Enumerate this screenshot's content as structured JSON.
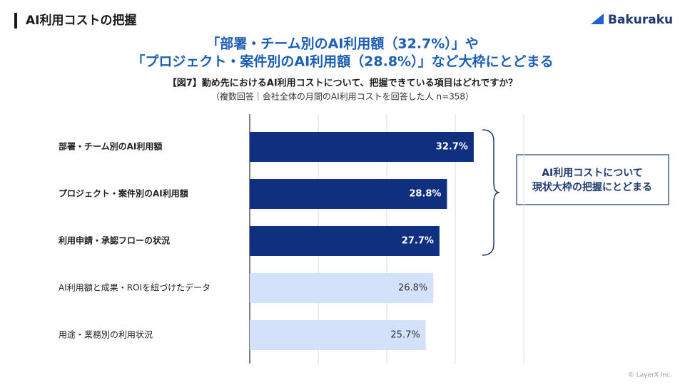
{
  "header": {
    "section_title": "AI利用コストの把握",
    "logo": "Bakuraku"
  },
  "headline": [
    "「部署・チーム別のAI利用額（32.7%）」や",
    "「プロジェクト・案件別のAI利用額（28.8%）」など大枠にとどまる"
  ],
  "chart_data": {
    "type": "bar",
    "orientation": "horizontal",
    "title": "【図7】勤め先におけるAI利用コストについて、把握できている項目はどれですか？",
    "subtitle": "（複数回答｜会社全体の月間のAI利用コストを回答した人 n=358）",
    "categories": [
      "部署・チーム別のAI利用額",
      "プロジェクト・案件別のAI利用額",
      "利用申請・承認フローの状況",
      "AI利用額と成果・ROIを紐づけたデータ",
      "用途・業務別の利用状況"
    ],
    "values": [
      32.7,
      28.8,
      27.7,
      26.8,
      25.7
    ],
    "value_labels": [
      "32.7%",
      "28.8%",
      "27.7%",
      "26.8%",
      "25.7%"
    ],
    "colors": [
      "#0f2f7f",
      "#0f2f7f",
      "#0f2f7f",
      "#d3e2fa",
      "#d3e2fa"
    ],
    "emphasis": [
      true,
      true,
      true,
      false,
      false
    ],
    "xlim": [
      0,
      40
    ],
    "xticks": [
      0,
      10,
      20,
      30,
      40
    ],
    "grid": true,
    "callout": [
      "AI利用コストについて",
      "現状大枠の把握にとどまる"
    ]
  },
  "footer": {
    "copyright": "© LayerX Inc."
  }
}
